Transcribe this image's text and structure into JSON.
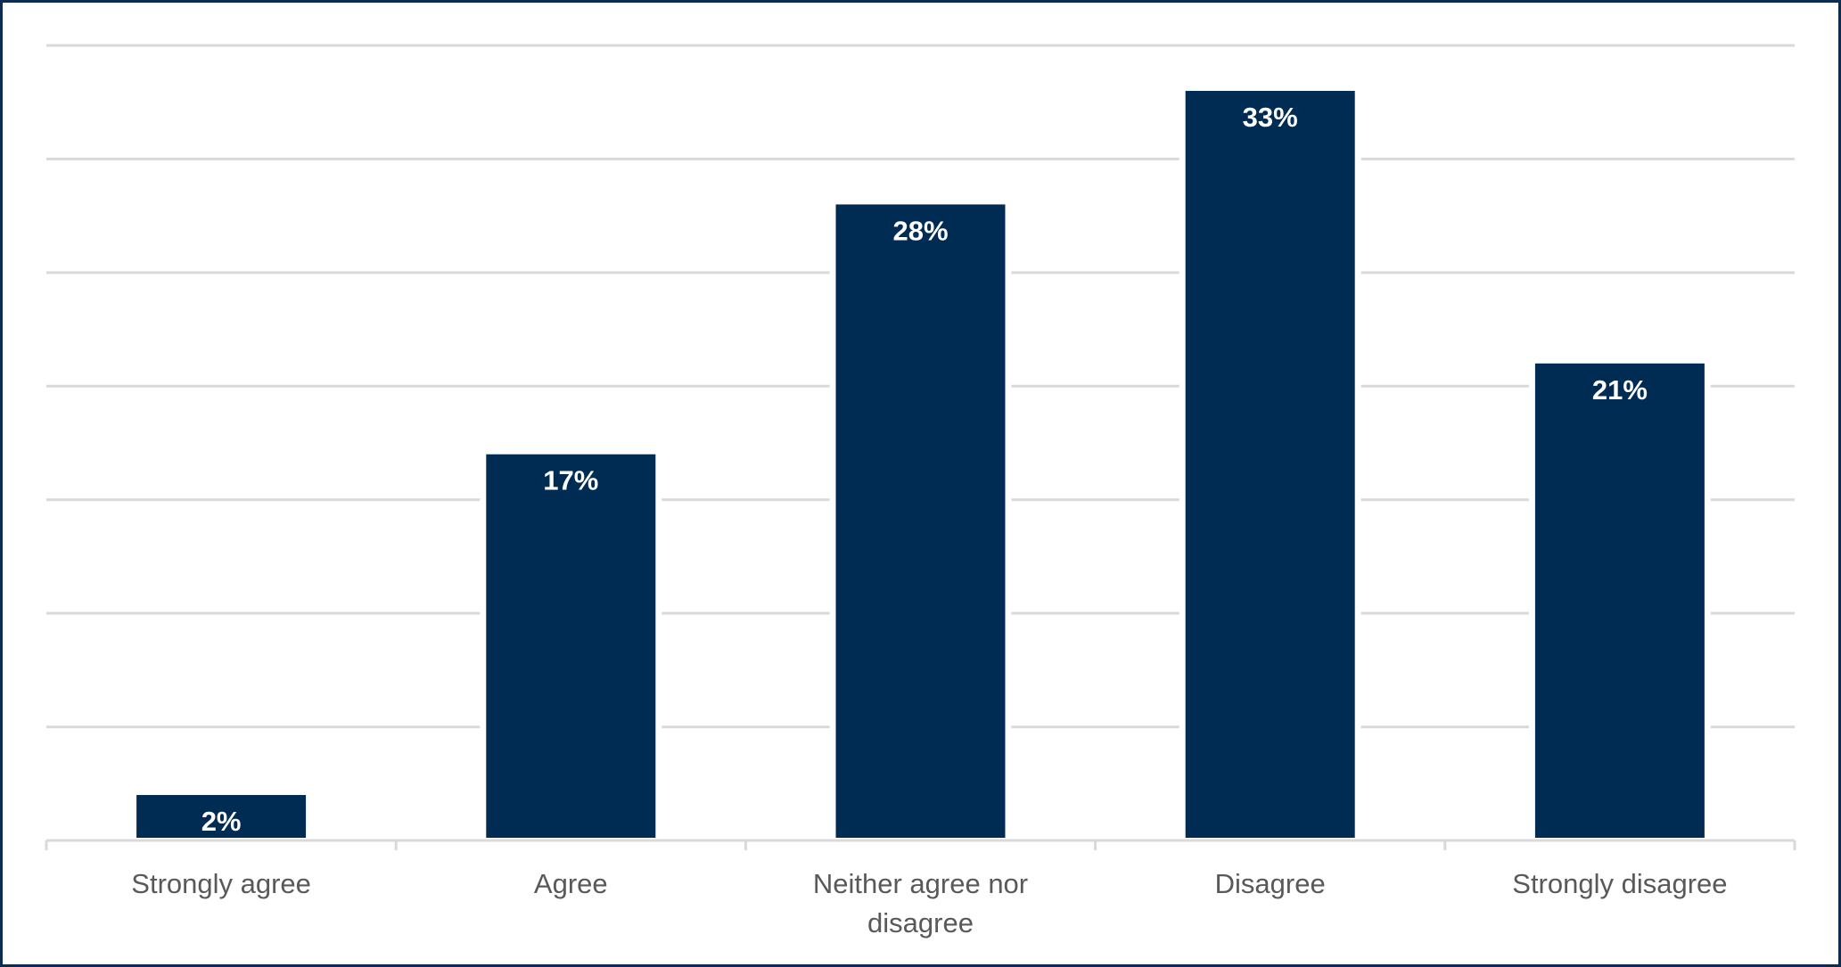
{
  "chart_data": {
    "type": "bar",
    "categories": [
      "Strongly agree",
      "Agree",
      "Neither agree nor disagree",
      "Disagree",
      "Strongly disagree"
    ],
    "values": [
      2,
      17,
      28,
      33,
      21
    ],
    "value_labels": [
      "2%",
      "17%",
      "28%",
      "33%",
      "21%"
    ],
    "tick_label_lines": [
      [
        "Strongly agree"
      ],
      [
        "Agree"
      ],
      [
        "Neither agree nor",
        "disagree"
      ],
      [
        "Disagree"
      ],
      [
        "Strongly disagree"
      ]
    ],
    "unit": "%",
    "ylim": [
      0,
      35
    ],
    "y_gridline_step": 5,
    "y_tick_labels_shown": false,
    "grid": true,
    "legend": "none",
    "colors": {
      "bar": "#002c54",
      "gridline": "#d9d9d9",
      "axis": "#d9d9d9",
      "tick_text": "#595959",
      "data_label_text": "#ffffff",
      "frame_border": "#0d2c4f"
    }
  }
}
